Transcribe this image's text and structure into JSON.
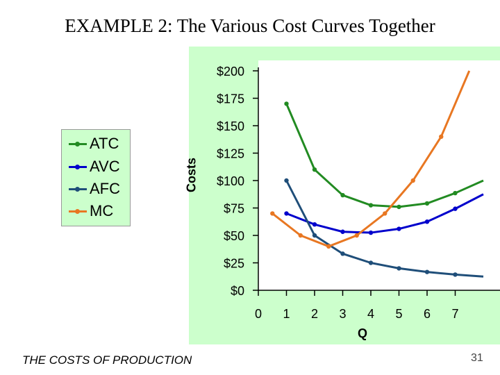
{
  "slide": {
    "title": "EXAMPLE 2:  The Various Cost Curves Together",
    "footer": "THE COSTS OF PRODUCTION",
    "page_number": "31"
  },
  "chart_data": {
    "type": "line",
    "title": "",
    "xlabel": "Q",
    "ylabel": "Costs",
    "xlim": [
      0,
      8
    ],
    "ylim": [
      0,
      200
    ],
    "x_ticks": [
      "0",
      "1",
      "2",
      "3",
      "4",
      "5",
      "6",
      "7"
    ],
    "y_ticks": [
      "$0",
      "$25",
      "$50",
      "$75",
      "$100",
      "$125",
      "$150",
      "$175",
      "$200"
    ],
    "legend_position": "left-outside",
    "series": [
      {
        "name": "ATC",
        "color": "#228b22",
        "x": [
          1,
          2,
          3,
          4,
          5,
          6,
          7,
          8
        ],
        "y": [
          170,
          110,
          86.67,
          77.5,
          76,
          79.17,
          88.57,
          100
        ],
        "markers": [
          1,
          1,
          1,
          1,
          1,
          1,
          1,
          0
        ]
      },
      {
        "name": "AVC",
        "color": "#0000cc",
        "x": [
          1,
          2,
          3,
          4,
          5,
          6,
          7,
          8
        ],
        "y": [
          70,
          60,
          53.33,
          52.5,
          56,
          62.5,
          74.29,
          87.5
        ],
        "markers": [
          1,
          1,
          1,
          1,
          1,
          1,
          1,
          0
        ]
      },
      {
        "name": "AFC",
        "color": "#1f4e79",
        "x": [
          1,
          2,
          3,
          4,
          5,
          6,
          7,
          8
        ],
        "y": [
          100,
          50,
          33.33,
          25,
          20,
          16.67,
          14.29,
          12.5
        ],
        "markers": [
          1,
          1,
          1,
          1,
          1,
          1,
          1,
          0
        ]
      },
      {
        "name": "MC",
        "color": "#e87722",
        "x": [
          0.5,
          1.5,
          2.5,
          3.5,
          4.5,
          5.5,
          6.5,
          7.5
        ],
        "y": [
          70,
          50,
          40,
          50,
          70,
          100,
          140,
          200
        ],
        "markers": [
          1,
          1,
          1,
          1,
          1,
          1,
          1,
          0
        ]
      }
    ]
  }
}
